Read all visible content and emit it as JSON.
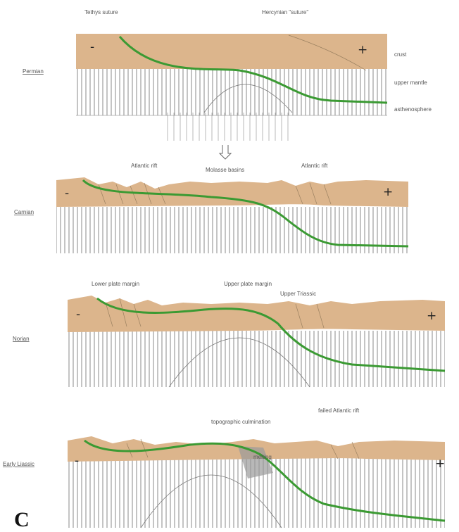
{
  "colors": {
    "crust": "#dcb58c",
    "suture_line": "#3b9a33",
    "mantle_line": "#555555",
    "label_text": "#555555"
  },
  "panel_label": "C",
  "stages": [
    {
      "label": "Permian",
      "annotations": [
        "Tethys suture",
        "Hercynian \"suture\""
      ],
      "layer_labels": [
        "crust",
        "upper mantle",
        "asthenosphere"
      ],
      "signs": [
        "-",
        "+"
      ]
    },
    {
      "label": "Carnian",
      "annotations": [
        "Atlantic rift",
        "Molasse basins",
        "Atlantic rift"
      ],
      "signs": [
        "-",
        "+"
      ]
    },
    {
      "label": "Norian",
      "annotations": [
        "Lower plate margin",
        "Upper plate margin",
        "Upper Triassic"
      ],
      "signs": [
        "-",
        "+"
      ]
    },
    {
      "label": "Early Liassic",
      "annotations": [
        "topographic culmination",
        "failed Atlantic rift",
        "melting"
      ],
      "signs": [
        "-",
        "+"
      ]
    }
  ]
}
